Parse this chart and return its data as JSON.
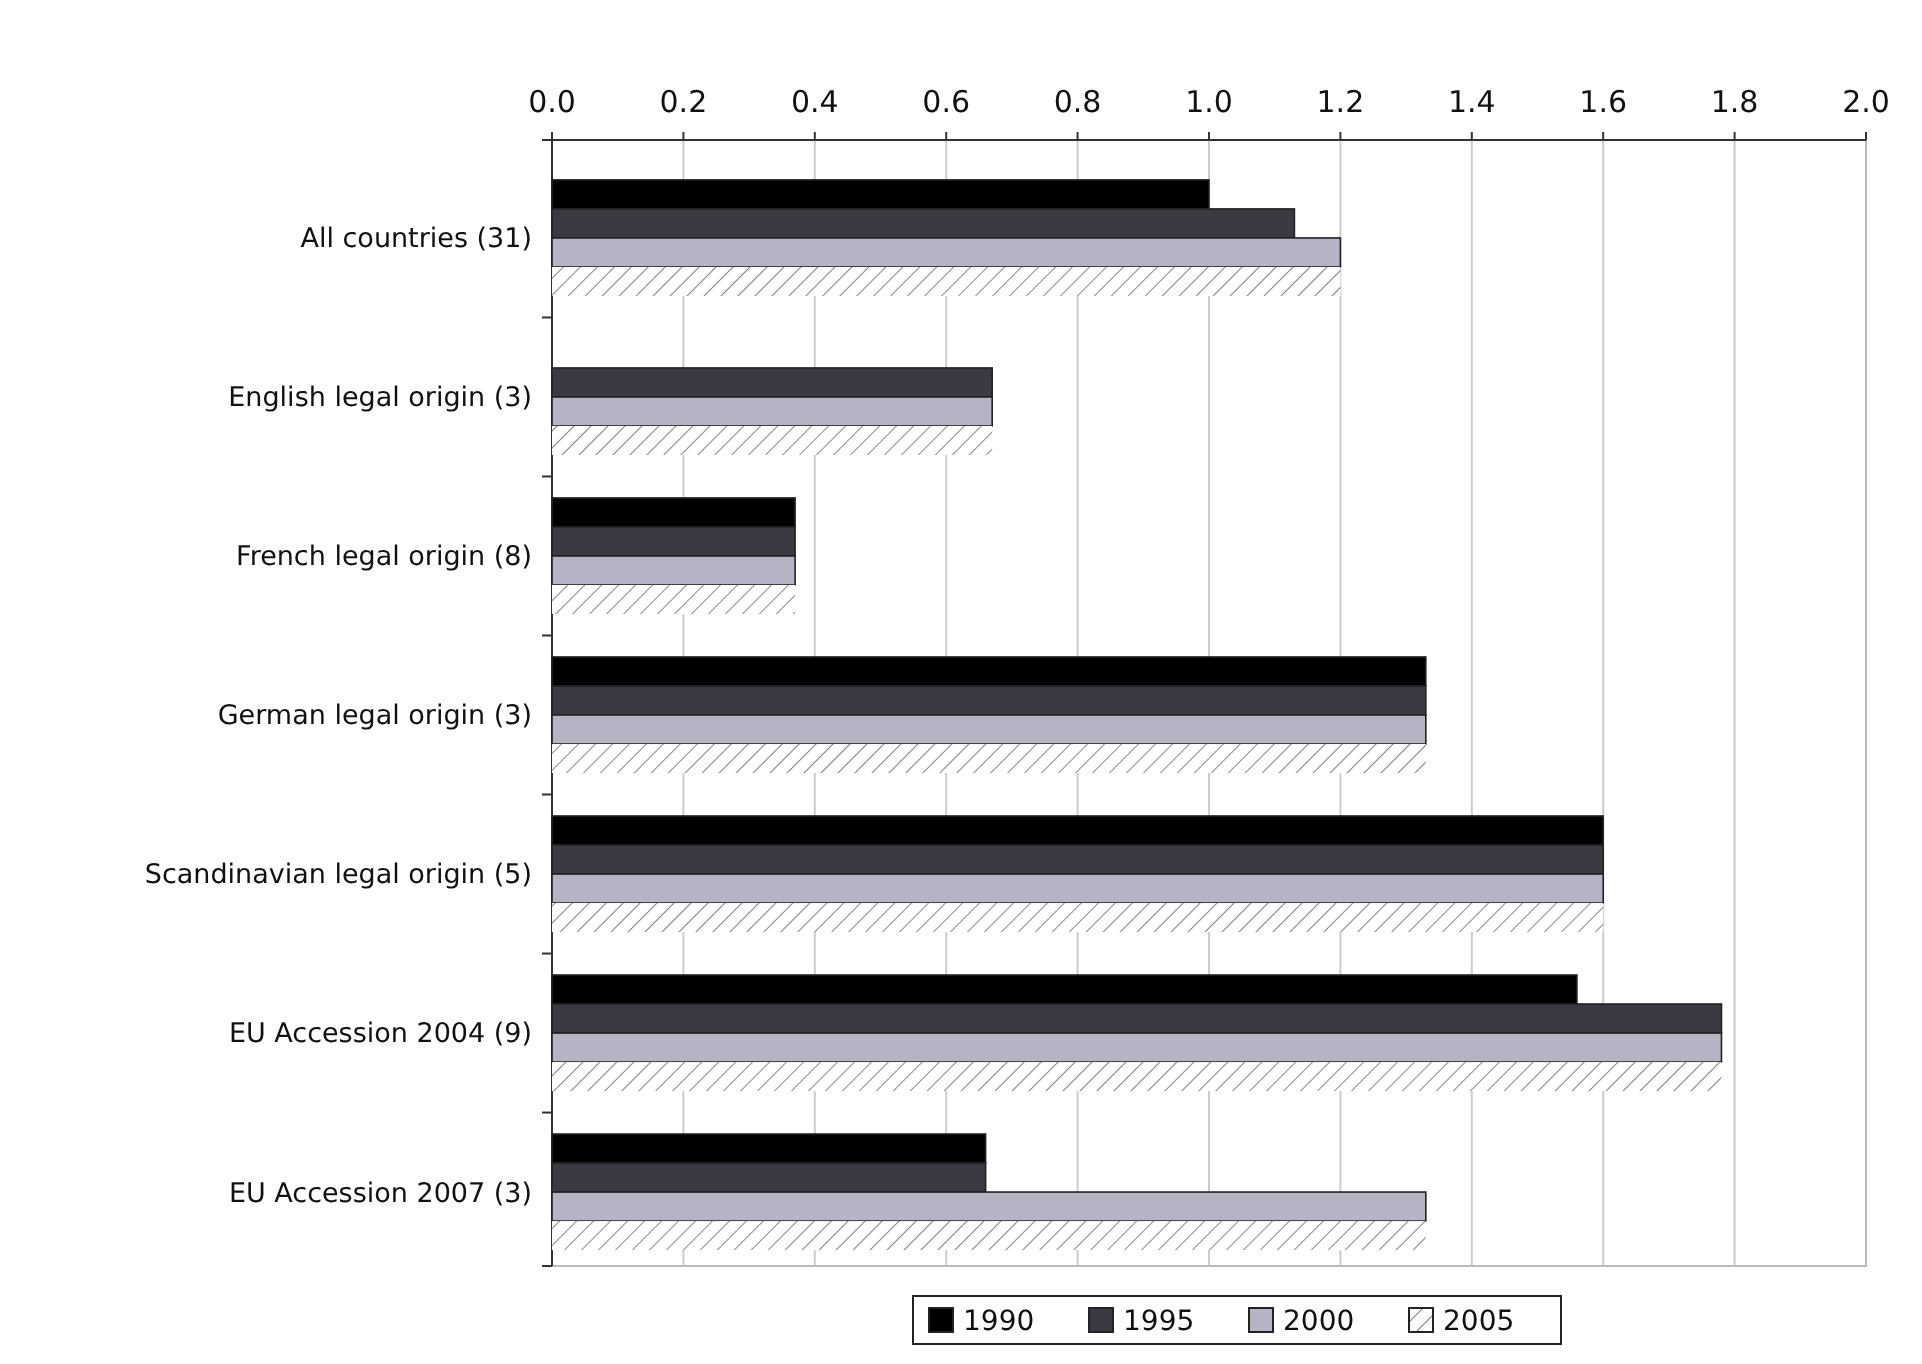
{
  "chart_data": {
    "type": "bar",
    "orientation": "horizontal",
    "categories": [
      "All countries (31)",
      "English legal origin (3)",
      "French legal origin (8)",
      "German legal origin (3)",
      "Scandinavian legal origin (5)",
      "EU Accession 2004 (9)",
      "EU Accession 2007 (3)"
    ],
    "series": [
      {
        "name": "1990",
        "color": "#000000",
        "values": [
          1.0,
          0,
          0.37,
          1.33,
          1.6,
          1.56,
          0.66
        ]
      },
      {
        "name": "1995",
        "color": "#3a3a42",
        "values": [
          1.13,
          0.67,
          0.37,
          1.33,
          1.6,
          1.78,
          0.66
        ]
      },
      {
        "name": "2000",
        "color": "#b4b4c4",
        "values": [
          1.2,
          0.67,
          0.37,
          1.33,
          1.6,
          1.78,
          1.33
        ]
      },
      {
        "name": "2005",
        "color": "#ffffff",
        "values": [
          1.2,
          0.67,
          0.37,
          1.33,
          1.6,
          1.78,
          1.33
        ]
      }
    ],
    "xlim": [
      0,
      2
    ],
    "xticks": [
      {
        "value": 0,
        "label": "0.0"
      },
      {
        "value": 0.2,
        "label": "0.2"
      },
      {
        "value": 0.4,
        "label": "0.4"
      },
      {
        "value": 0.6,
        "label": "0.6"
      },
      {
        "value": 0.8,
        "label": "0.8"
      },
      {
        "value": 1,
        "label": "1.0"
      },
      {
        "value": 1.2,
        "label": "1.2"
      },
      {
        "value": 1.4,
        "label": "1.4"
      },
      {
        "value": 1.6,
        "label": "1.6"
      },
      {
        "value": 1.8,
        "label": "1.8"
      },
      {
        "value": 2,
        "label": "2.0"
      }
    ],
    "grid": "x",
    "legend": "bottom"
  }
}
